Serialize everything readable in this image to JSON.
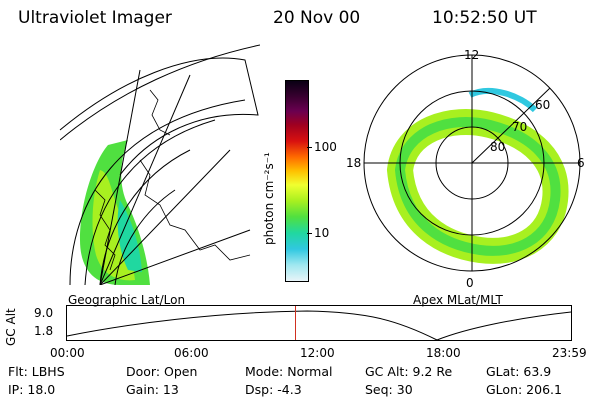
{
  "header": {
    "title": "Ultraviolet Imager",
    "date": "20 Nov 00",
    "time": "10:52:50 UT"
  },
  "geo_map": {
    "caption": "Geographic Lat/Lon"
  },
  "colorbar": {
    "label": "photon cm⁻²s⁻¹",
    "ticks": [
      "100",
      "10"
    ],
    "colors": [
      "#0a0014",
      "#3a0030",
      "#6a0050",
      "#a00020",
      "#d81010",
      "#ff6a00",
      "#ffc000",
      "#f0ff30",
      "#a8f020",
      "#50e040",
      "#20d8a0",
      "#30c8e0",
      "#a0e8f0",
      "#e8f4f8"
    ]
  },
  "polar_map": {
    "caption": "Apex MLat/MLT",
    "mlt_labels": {
      "top": "12",
      "left": "18",
      "right": "6",
      "bottom": "0"
    },
    "lat_labels": [
      "60",
      "70",
      "80"
    ]
  },
  "timeline": {
    "ylabel": "GC Alt",
    "ytick_top": "9.0",
    "ytick_bottom": "1.8",
    "xticks": [
      "00:00",
      "06:00",
      "12:00",
      "18:00",
      "23:59"
    ],
    "current_fraction": 0.4533,
    "marker_color": "#d03020"
  },
  "status": {
    "flt": "Flt: LBHS",
    "door": "Door: Open",
    "mode": "Mode: Normal",
    "gc_alt": "GC Alt: 9.2 Re",
    "glat": "GLat:  63.9",
    "ip": "IP: 18.0",
    "gain": "Gain: 13",
    "dsp": "Dsp:   -4.3",
    "seq": "Seq: 30",
    "glon": "GLon: 206.1"
  }
}
